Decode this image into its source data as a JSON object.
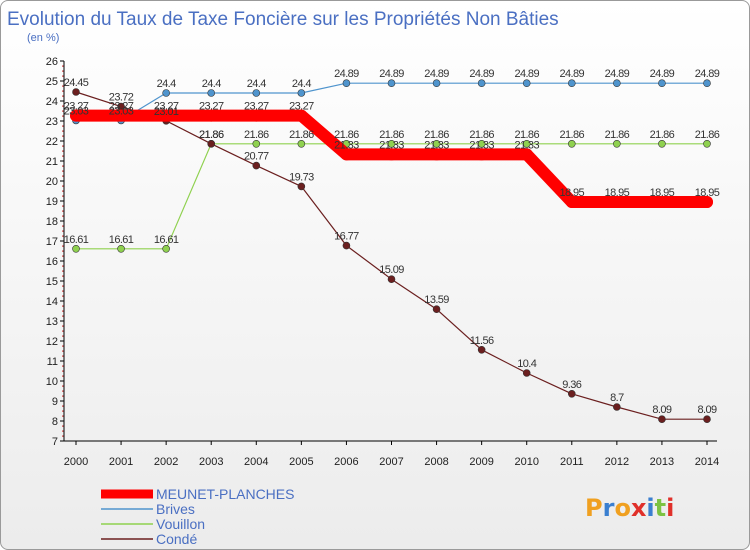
{
  "chart_data": {
    "type": "line",
    "title": "Evolution du Taux de Taxe Foncière sur les Propriétés Non Bâties",
    "subtitle": "(en %)",
    "xlabel": "",
    "ylabel": "",
    "ylim": [
      7,
      26
    ],
    "yticks": [
      7,
      8,
      9,
      10,
      11,
      12,
      13,
      14,
      15,
      16,
      17,
      18,
      19,
      20,
      21,
      22,
      23,
      24,
      25,
      26
    ],
    "grid": false,
    "legend_position": "bottom-left",
    "x": [
      "2000",
      "2001",
      "2002",
      "2003",
      "2004",
      "2005",
      "2006",
      "2007",
      "2008",
      "2009",
      "2010",
      "2011",
      "2012",
      "2013",
      "2014"
    ],
    "series": [
      {
        "name": "MEUNET-PLANCHES",
        "color": "#ff0000",
        "values": [
          23.27,
          23.27,
          23.27,
          23.27,
          23.27,
          23.27,
          21.33,
          21.33,
          21.33,
          21.33,
          21.33,
          18.95,
          18.95,
          18.95,
          18.95
        ],
        "labels": [
          "23.27",
          "23.27",
          "23.27",
          "23.27",
          "23.27",
          "23.27",
          "21.33",
          "21.33",
          "21.33",
          "21.33",
          "21.33",
          "18.95",
          "18.95",
          "18.95",
          "18.95"
        ]
      },
      {
        "name": "Brives",
        "color": "#4f94cd",
        "values": [
          23.03,
          23.03,
          24.4,
          24.4,
          24.4,
          24.4,
          24.89,
          24.89,
          24.89,
          24.89,
          24.89,
          24.89,
          24.89,
          24.89,
          24.89
        ],
        "labels": [
          "23.03",
          "23.03",
          "24.4",
          "24.4",
          "24.4",
          "24.4",
          "24.89",
          "24.89",
          "24.89",
          "24.89",
          "24.89",
          "24.89",
          "24.89",
          "24.89",
          "24.89"
        ]
      },
      {
        "name": "Vouillon",
        "color": "#8fd14f",
        "values": [
          16.61,
          16.61,
          16.61,
          21.86,
          21.86,
          21.86,
          21.86,
          21.86,
          21.86,
          21.86,
          21.86,
          21.86,
          21.86,
          21.86,
          21.86
        ],
        "labels": [
          "16.61",
          "16.61",
          "16.61",
          "21.86",
          "21.86",
          "21.86",
          "21.86",
          "21.86",
          "21.86",
          "21.86",
          "21.86",
          "21.86",
          "21.86",
          "21.86",
          "21.86"
        ]
      },
      {
        "name": "Condé",
        "color": "#6b1f1f",
        "values": [
          24.45,
          23.72,
          23.01,
          21.86,
          20.77,
          19.73,
          16.77,
          15.09,
          13.59,
          11.56,
          10.4,
          9.36,
          8.7,
          8.09,
          8.09
        ],
        "labels": [
          "24.45",
          "23.72",
          "23.01",
          "21.86",
          "20.77",
          "19.73",
          "16.77",
          "15.09",
          "13.59",
          "11.56",
          "10.4",
          "9.36",
          "8.7",
          "8.09",
          "8.09"
        ]
      }
    ]
  },
  "logo": {
    "text": "Proxiti",
    "colors": [
      "#f0a020",
      "#3a7fd0",
      "#f0a020",
      "#e0302a",
      "#3a7fd0",
      "#7cc242",
      "#e0302a"
    ]
  }
}
